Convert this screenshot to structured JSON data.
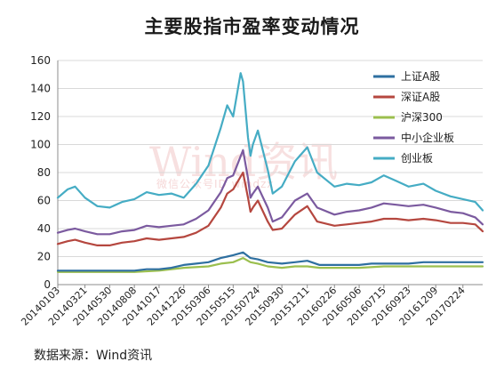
{
  "title": "主要股指市盈率变动情况",
  "watermark": "Wind资讯",
  "watermark_sub": "微信公众号ID windzx",
  "source": "数据来源：Wind资讯",
  "colors": {
    "上证A股": "#2e6fa0",
    "深证A股": "#b5473f",
    "沪深300": "#9bbf4e",
    "中小企业板": "#7b5a9f",
    "创业板": "#45acc4",
    "grid": "#d9d9d9",
    "axis": "#8c8c8c"
  },
  "chart_data": {
    "type": "line",
    "title": "主要股指市盈率变动情况",
    "xlabel": "",
    "ylabel": "",
    "ylim": [
      0,
      160
    ],
    "yticks": [
      0,
      20,
      40,
      60,
      80,
      100,
      120,
      140,
      160
    ],
    "grid": true,
    "legend_position": "top-right",
    "x_tick_labels": [
      "20140103",
      "20140321",
      "20140530",
      "20140808",
      "20141017",
      "20141226",
      "20150306",
      "20150515",
      "20150724",
      "20150930",
      "20151211",
      "20160226",
      "20160506",
      "20160715",
      "20160923",
      "20161209",
      "20170224"
    ],
    "x_start": "20140103",
    "x_end": "20170421",
    "series": [
      {
        "name": "上证A股",
        "points": [
          [
            "20140103",
            10
          ],
          [
            "20140221",
            10
          ],
          [
            "20140321",
            10
          ],
          [
            "20140425",
            10
          ],
          [
            "20140530",
            10
          ],
          [
            "20140704",
            10
          ],
          [
            "20140808",
            10
          ],
          [
            "20140912",
            11
          ],
          [
            "20141017",
            11
          ],
          [
            "20141121",
            12
          ],
          [
            "20141226",
            14
          ],
          [
            "20150130",
            15
          ],
          [
            "20150306",
            16
          ],
          [
            "20150410",
            19
          ],
          [
            "20150428",
            20
          ],
          [
            "20150515",
            21
          ],
          [
            "20150612",
            23
          ],
          [
            "20150703",
            19
          ],
          [
            "20150724",
            18
          ],
          [
            "20150821",
            16
          ],
          [
            "20150930",
            15
          ],
          [
            "20151106",
            16
          ],
          [
            "20151211",
            17
          ],
          [
            "20160115",
            14
          ],
          [
            "20160226",
            14
          ],
          [
            "20160401",
            14
          ],
          [
            "20160506",
            14
          ],
          [
            "20160610",
            15
          ],
          [
            "20160715",
            15
          ],
          [
            "20160819",
            15
          ],
          [
            "20160923",
            15
          ],
          [
            "20161104",
            16
          ],
          [
            "20161209",
            16
          ],
          [
            "20170120",
            16
          ],
          [
            "20170224",
            16
          ],
          [
            "20170331",
            16
          ],
          [
            "20170421",
            16
          ]
        ]
      },
      {
        "name": "深证A股",
        "points": [
          [
            "20140103",
            29
          ],
          [
            "20140131",
            31
          ],
          [
            "20140221",
            32
          ],
          [
            "20140321",
            30
          ],
          [
            "20140425",
            28
          ],
          [
            "20140530",
            28
          ],
          [
            "20140704",
            30
          ],
          [
            "20140808",
            31
          ],
          [
            "20140912",
            33
          ],
          [
            "20141017",
            32
          ],
          [
            "20141121",
            33
          ],
          [
            "20141226",
            34
          ],
          [
            "20150130",
            37
          ],
          [
            "20150306",
            42
          ],
          [
            "20150410",
            55
          ],
          [
            "20150428",
            65
          ],
          [
            "20150515",
            68
          ],
          [
            "20150612",
            80
          ],
          [
            "20150626",
            62
          ],
          [
            "20150703",
            52
          ],
          [
            "20150710",
            55
          ],
          [
            "20150724",
            60
          ],
          [
            "20150821",
            45
          ],
          [
            "20150904",
            39
          ],
          [
            "20150930",
            40
          ],
          [
            "20151106",
            50
          ],
          [
            "20151211",
            56
          ],
          [
            "20160108",
            45
          ],
          [
            "20160226",
            42
          ],
          [
            "20160401",
            43
          ],
          [
            "20160506",
            44
          ],
          [
            "20160610",
            45
          ],
          [
            "20160715",
            47
          ],
          [
            "20160819",
            47
          ],
          [
            "20160923",
            46
          ],
          [
            "20161104",
            47
          ],
          [
            "20161209",
            46
          ],
          [
            "20170120",
            44
          ],
          [
            "20170224",
            44
          ],
          [
            "20170331",
            43
          ],
          [
            "20170421",
            38
          ]
        ]
      },
      {
        "name": "沪深300",
        "points": [
          [
            "20140103",
            9
          ],
          [
            "20140321",
            9
          ],
          [
            "20140530",
            9
          ],
          [
            "20140808",
            9
          ],
          [
            "20141017",
            10
          ],
          [
            "20141226",
            12
          ],
          [
            "20150306",
            13
          ],
          [
            "20150410",
            15
          ],
          [
            "20150515",
            16
          ],
          [
            "20150612",
            19
          ],
          [
            "20150703",
            16
          ],
          [
            "20150724",
            15
          ],
          [
            "20150821",
            13
          ],
          [
            "20150930",
            12
          ],
          [
            "20151106",
            13
          ],
          [
            "20151211",
            13
          ],
          [
            "20160115",
            12
          ],
          [
            "20160226",
            12
          ],
          [
            "20160506",
            12
          ],
          [
            "20160715",
            13
          ],
          [
            "20160923",
            13
          ],
          [
            "20161209",
            13
          ],
          [
            "20170224",
            13
          ],
          [
            "20170421",
            13
          ]
        ]
      },
      {
        "name": "中小企业板",
        "points": [
          [
            "20140103",
            37
          ],
          [
            "20140131",
            39
          ],
          [
            "20140221",
            40
          ],
          [
            "20140321",
            38
          ],
          [
            "20140425",
            36
          ],
          [
            "20140530",
            36
          ],
          [
            "20140704",
            38
          ],
          [
            "20140808",
            39
          ],
          [
            "20140912",
            42
          ],
          [
            "20141017",
            41
          ],
          [
            "20141121",
            42
          ],
          [
            "20141226",
            43
          ],
          [
            "20150130",
            47
          ],
          [
            "20150306",
            53
          ],
          [
            "20150410",
            66
          ],
          [
            "20150428",
            76
          ],
          [
            "20150515",
            78
          ],
          [
            "20150612",
            96
          ],
          [
            "20150626",
            76
          ],
          [
            "20150703",
            62
          ],
          [
            "20150710",
            65
          ],
          [
            "20150724",
            70
          ],
          [
            "20150821",
            55
          ],
          [
            "20150904",
            45
          ],
          [
            "20150930",
            48
          ],
          [
            "20151106",
            60
          ],
          [
            "20151211",
            65
          ],
          [
            "20160108",
            55
          ],
          [
            "20160226",
            50
          ],
          [
            "20160401",
            52
          ],
          [
            "20160506",
            53
          ],
          [
            "20160610",
            55
          ],
          [
            "20160715",
            58
          ],
          [
            "20160819",
            57
          ],
          [
            "20160923",
            56
          ],
          [
            "20161104",
            57
          ],
          [
            "20161209",
            55
          ],
          [
            "20170120",
            52
          ],
          [
            "20170224",
            51
          ],
          [
            "20170331",
            48
          ],
          [
            "20170421",
            43
          ]
        ]
      },
      {
        "name": "创业板",
        "points": [
          [
            "20140103",
            62
          ],
          [
            "20140131",
            68
          ],
          [
            "20140221",
            70
          ],
          [
            "20140321",
            62
          ],
          [
            "20140425",
            56
          ],
          [
            "20140530",
            55
          ],
          [
            "20140704",
            59
          ],
          [
            "20140808",
            61
          ],
          [
            "20140912",
            66
          ],
          [
            "20141017",
            64
          ],
          [
            "20141121",
            65
          ],
          [
            "20141226",
            62
          ],
          [
            "20150130",
            72
          ],
          [
            "20150306",
            85
          ],
          [
            "20150410",
            112
          ],
          [
            "20150428",
            128
          ],
          [
            "20150515",
            120
          ],
          [
            "20150605",
            151
          ],
          [
            "20150612",
            145
          ],
          [
            "20150626",
            105
          ],
          [
            "20150703",
            92
          ],
          [
            "20150710",
            100
          ],
          [
            "20150724",
            110
          ],
          [
            "20150821",
            82
          ],
          [
            "20150904",
            65
          ],
          [
            "20150930",
            70
          ],
          [
            "20151106",
            88
          ],
          [
            "20151211",
            98
          ],
          [
            "20160108",
            80
          ],
          [
            "20160226",
            70
          ],
          [
            "20160401",
            72
          ],
          [
            "20160506",
            71
          ],
          [
            "20160610",
            73
          ],
          [
            "20160715",
            78
          ],
          [
            "20160819",
            74
          ],
          [
            "20160923",
            70
          ],
          [
            "20161104",
            72
          ],
          [
            "20161209",
            67
          ],
          [
            "20170120",
            63
          ],
          [
            "20170224",
            61
          ],
          [
            "20170331",
            59
          ],
          [
            "20170421",
            53
          ]
        ]
      }
    ]
  }
}
